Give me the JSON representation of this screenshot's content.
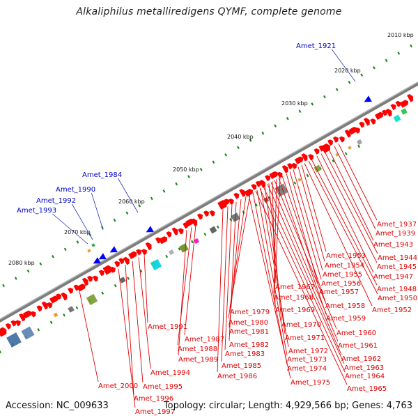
{
  "title": "Alkaliphilus metalliredigens QYMF, complete genome",
  "footer": {
    "accession": "Accession: NC_009633",
    "topology": "Topology: circular; Length: 4,929,566 bp; Genes: 4,763"
  },
  "colors": {
    "backbone": "#8a8a8a",
    "gene_forward": "#ff0000",
    "label_red": "#e00000",
    "label_blue": "#0000cc",
    "tick_green": "#1a8a1a"
  },
  "scale_labels": [
    "2010 kbp",
    "2020 kbp",
    "2030 kbp",
    "2040 kbp",
    "2050 kbp",
    "2060 kbp",
    "2070 kbp",
    "2080 kbp"
  ],
  "gene_labels_blue": [
    "Amet_1921",
    "Amet_1984",
    "Amet_1990",
    "Amet_1992",
    "Amet_1993"
  ],
  "gene_labels_red": [
    "Amet_1937",
    "Amet_1939",
    "Amet_1943",
    "Amet_1944",
    "Amet_1945",
    "Amet_1947",
    "Amet_1948",
    "Amet_1950",
    "Amet_1952",
    "Amet_1953",
    "Amet_1954",
    "Amet_1955",
    "Amet_1956",
    "Amet_1957",
    "Amet_1958",
    "Amet_1959",
    "Amet_1960",
    "Amet_1961",
    "Amet_1962",
    "Amet_1963",
    "Amet_1964",
    "Amet_1965",
    "Amet_1967",
    "Amet_1968",
    "Amet_1969",
    "Amet_1970",
    "Amet_1971",
    "Amet_1972",
    "Amet_1973",
    "Amet_1974",
    "Amet_1975",
    "Amet_1979",
    "Amet_1980",
    "Amet_1981",
    "Amet_1982",
    "Amet_1983",
    "Amet_1985",
    "Amet_1986",
    "Amet_1987",
    "Amet_1988",
    "Amet_1989",
    "Amet_1991",
    "Amet_1994",
    "Amet_1995",
    "Amet_1996",
    "Amet_1997",
    "Amet_2000"
  ]
}
